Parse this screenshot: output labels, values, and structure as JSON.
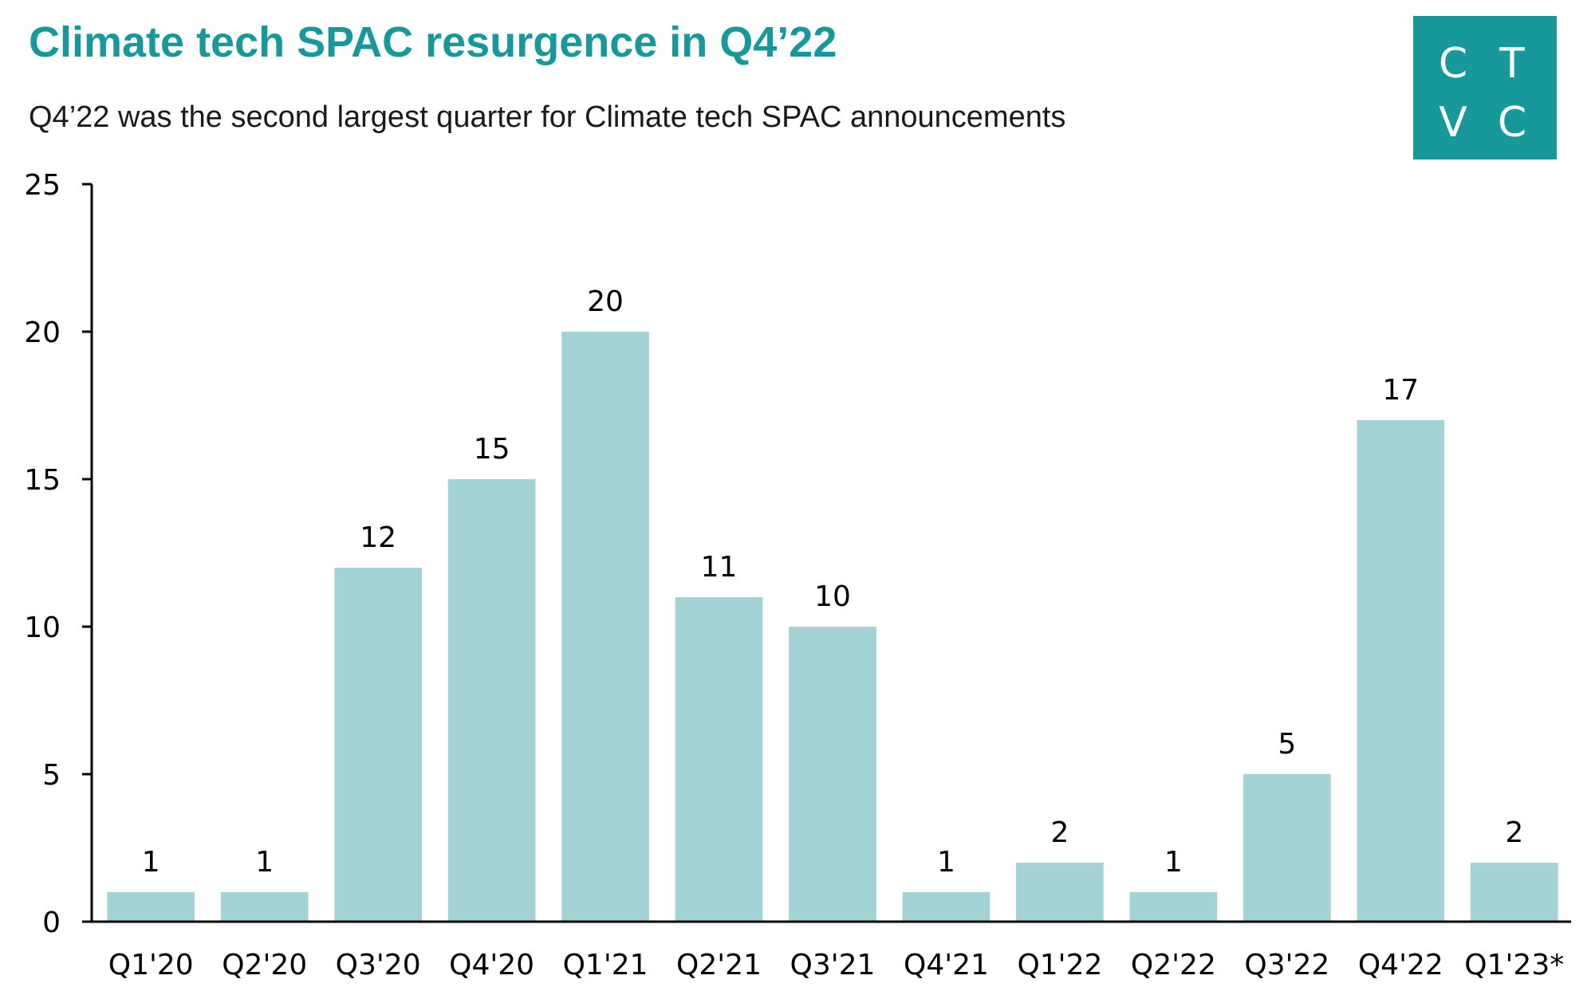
{
  "header": {
    "title": "Climate tech SPAC resurgence in Q4’22",
    "subtitle": "Q4’22 was the second largest quarter for Climate tech SPAC announcements"
  },
  "logo": {
    "letters": [
      "C",
      "T",
      "V",
      "C"
    ],
    "color": "#17999b"
  },
  "colors": {
    "bar": "#a3d3d4",
    "axis": "#000000"
  },
  "chart_data": {
    "type": "bar",
    "title": "Climate tech SPAC resurgence in Q4’22",
    "subtitle": "Q4’22 was the second largest quarter for Climate tech SPAC announcements",
    "categories": [
      "Q1'20",
      "Q2'20",
      "Q3'20",
      "Q4'20",
      "Q1'21",
      "Q2'21",
      "Q3'21",
      "Q4'21",
      "Q1'22",
      "Q2'22",
      "Q3'22",
      "Q4'22",
      "Q1'23*"
    ],
    "values": [
      1,
      1,
      12,
      15,
      20,
      11,
      10,
      1,
      2,
      1,
      5,
      17,
      2
    ],
    "ylim": [
      0,
      25
    ],
    "yticks": [
      0,
      5,
      10,
      15,
      20,
      25
    ],
    "xlabel": "",
    "ylabel": "",
    "grid": false,
    "data_labels": true
  }
}
